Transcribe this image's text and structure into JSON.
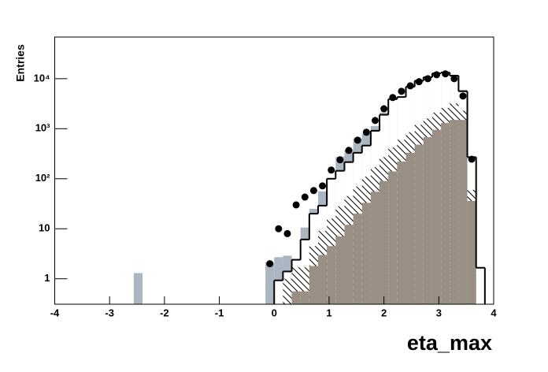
{
  "chart_data": {
    "type": "histogram",
    "xlabel": "eta_max",
    "ylabel": "Entries",
    "xlim": [
      -4,
      4
    ],
    "ylim": [
      0.31,
      68000
    ],
    "log_y": true,
    "xticks": [
      -4,
      -3,
      -2,
      -1,
      0,
      1,
      2,
      3,
      4
    ],
    "yticks": [
      1,
      10,
      {
        "value": 100,
        "label": "10²"
      },
      {
        "value": 1000,
        "label": "10³"
      },
      {
        "value": 10000,
        "label": "10⁴"
      }
    ],
    "bins": [
      -4,
      -3.84,
      -3.68,
      -3.52,
      -3.36,
      -3.2,
      -3.04,
      -2.88,
      -2.72,
      -2.56,
      -2.4,
      -2.24,
      -2.08,
      -1.92,
      -1.76,
      -1.6,
      -1.44,
      -1.28,
      -1.12,
      -0.96,
      -0.8,
      -0.64,
      -0.48,
      -0.32,
      -0.16,
      0,
      0.16,
      0.32,
      0.48,
      0.64,
      0.8,
      0.96,
      1.12,
      1.28,
      1.44,
      1.6,
      1.76,
      1.92,
      2.08,
      2.24,
      2.4,
      2.56,
      2.72,
      2.88,
      3.04,
      3.2,
      3.36,
      3.52,
      3.68,
      3.84,
      4
    ],
    "series": [
      {
        "style": "fill",
        "color": "#aab6c2",
        "values": [
          null,
          null,
          null,
          null,
          null,
          null,
          null,
          null,
          null,
          1.3,
          null,
          null,
          null,
          null,
          null,
          null,
          null,
          null,
          null,
          null,
          null,
          null,
          null,
          null,
          2.1,
          2.7,
          2.9,
          1.6,
          10.6,
          25,
          56,
          90,
          275,
          380,
          640,
          790,
          1130,
          2100,
          3500,
          4300,
          6400,
          8300,
          10500,
          12500,
          13300,
          12000,
          6000,
          220,
          null,
          null
        ]
      },
      {
        "style": "line",
        "color": "#000000",
        "values": [
          null,
          null,
          null,
          null,
          null,
          null,
          null,
          null,
          null,
          null,
          null,
          null,
          null,
          null,
          null,
          null,
          null,
          null,
          null,
          null,
          null,
          null,
          null,
          null,
          null,
          0.93,
          1.4,
          2.4,
          6.1,
          20,
          29,
          100,
          144,
          215,
          330,
          460,
          910,
          1900,
          3900,
          4300,
          6900,
          9100,
          10700,
          12800,
          13300,
          11500,
          5600,
          270,
          1.66,
          null
        ]
      },
      {
        "style": "hatch",
        "color": "#000000",
        "values": [
          null,
          null,
          null,
          null,
          null,
          null,
          null,
          null,
          null,
          null,
          null,
          null,
          null,
          null,
          null,
          null,
          null,
          null,
          null,
          null,
          null,
          null,
          null,
          null,
          null,
          null,
          1.0,
          1.7,
          1.7,
          4.5,
          9,
          16,
          28,
          45,
          70,
          110,
          170,
          270,
          420,
          600,
          850,
          1200,
          1600,
          2100,
          2600,
          3200,
          2300,
          60,
          null,
          null
        ]
      },
      {
        "style": "fill",
        "color": "#9a8f84",
        "values": [
          null,
          null,
          null,
          null,
          null,
          null,
          null,
          null,
          null,
          null,
          null,
          null,
          null,
          null,
          null,
          null,
          null,
          null,
          null,
          null,
          null,
          null,
          null,
          null,
          null,
          null,
          null,
          0.56,
          0.56,
          1.8,
          3,
          4.5,
          7,
          12,
          20,
          33,
          55,
          90,
          140,
          220,
          330,
          480,
          680,
          950,
          1300,
          1500,
          1500,
          36,
          null,
          null
        ]
      },
      {
        "style": "points",
        "color": "#000000",
        "values": [
          null,
          null,
          null,
          null,
          null,
          null,
          null,
          null,
          null,
          null,
          null,
          null,
          null,
          null,
          null,
          null,
          null,
          null,
          null,
          null,
          null,
          null,
          null,
          null,
          2,
          10,
          8,
          30,
          43,
          58,
          72,
          149,
          239,
          369,
          590,
          850,
          1460,
          2500,
          4200,
          5600,
          7200,
          8700,
          10000,
          12000,
          12500,
          10000,
          4500,
          246,
          null,
          null
        ]
      }
    ]
  }
}
